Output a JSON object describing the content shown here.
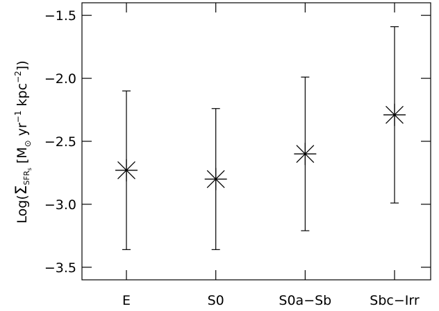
{
  "chart_data": {
    "type": "scatter",
    "title": "",
    "xlabel": "",
    "ylabel": {
      "prefix": "Log(",
      "sigma": "Σ",
      "sigma_sub": "SFR",
      "sigma_subsub": "s",
      "bracket_open": " [M",
      "sun_sub": "⊙",
      "yr": " yr",
      "yr_exp": "−1",
      "kpc": " kpc",
      "kpc_exp": "−2",
      "suffix": "])"
    },
    "categories": [
      "E",
      "S0",
      "S0a−Sb",
      "Sbc−Irr"
    ],
    "ylim": [
      -3.6,
      -1.4
    ],
    "yticks": [
      -3.5,
      -3.0,
      -2.5,
      -2.0,
      -1.5
    ],
    "ytick_labels": [
      "−3.5",
      "−3.0",
      "−2.5",
      "−2.0",
      "−1.5"
    ],
    "grid": false,
    "series": [
      {
        "marker": "asterisk",
        "values": [
          -2.73,
          -2.8,
          -2.6,
          -2.29
        ],
        "err_low": [
          -3.36,
          -3.36,
          -3.21,
          -2.99
        ],
        "err_high": [
          -2.1,
          -2.24,
          -1.99,
          -1.59
        ]
      }
    ]
  }
}
